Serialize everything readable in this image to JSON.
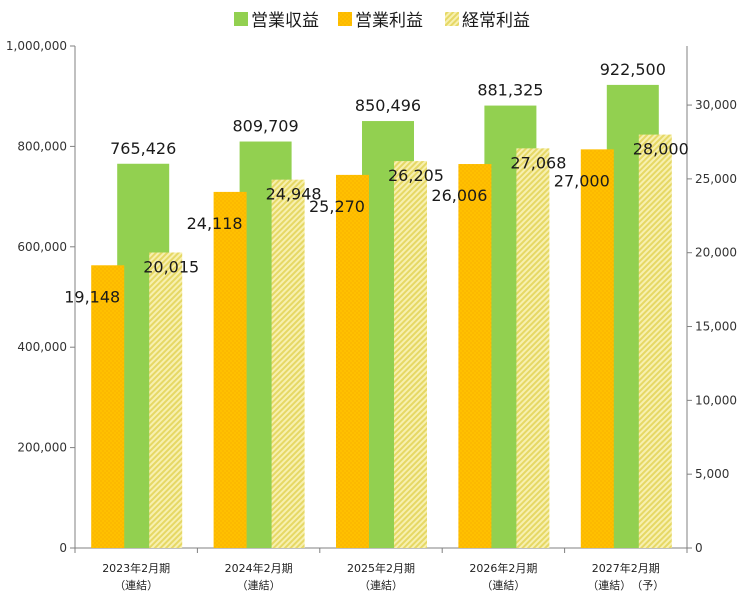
{
  "chart_data": {
    "type": "bar",
    "categories": [
      [
        "2023年2月期",
        "（連結）"
      ],
      [
        "2024年2月期",
        "（連結）"
      ],
      [
        "2025年2月期",
        "（連結）"
      ],
      [
        "2026年2月期",
        "（連結）"
      ],
      [
        "2027年2月期",
        "（連結）　（予）"
      ]
    ],
    "series": [
      {
        "name": "営業収益",
        "axis": "left",
        "color": "#92d050",
        "values": [
          765426,
          809709,
          850496,
          881325,
          922500
        ],
        "labels": [
          "765,426",
          "809,709",
          "850,496",
          "881,325",
          "922,500"
        ]
      },
      {
        "name": "営業利益",
        "axis": "right",
        "color": "#ffc000",
        "values": [
          19148,
          24118,
          25270,
          26006,
          27000
        ],
        "labels": [
          "19,148",
          "24,118",
          "25,270",
          "26,006",
          "27,000"
        ]
      },
      {
        "name": "経常利益",
        "axis": "right",
        "color": "#f2e88a",
        "values": [
          20015,
          24948,
          26205,
          27068,
          28000
        ],
        "labels": [
          "20,015",
          "24,948",
          "26,205",
          "27,068",
          "28,000"
        ]
      }
    ],
    "y_left": {
      "min": 0,
      "max": 1000000,
      "ticks": [
        0,
        200000,
        400000,
        600000,
        800000,
        1000000
      ],
      "tick_labels": [
        "0",
        "200,000",
        "400,000",
        "600,000",
        "800,000",
        "1,000,000"
      ]
    },
    "y_right": {
      "min": 0,
      "max": 34000,
      "ticks": [
        0,
        5000,
        10000,
        15000,
        20000,
        25000,
        30000
      ],
      "tick_labels": [
        "0",
        "5,000",
        "10,000",
        "15,000",
        "20,000",
        "25,000",
        "30,000"
      ]
    },
    "legend_position": "top-center",
    "grid": false
  }
}
